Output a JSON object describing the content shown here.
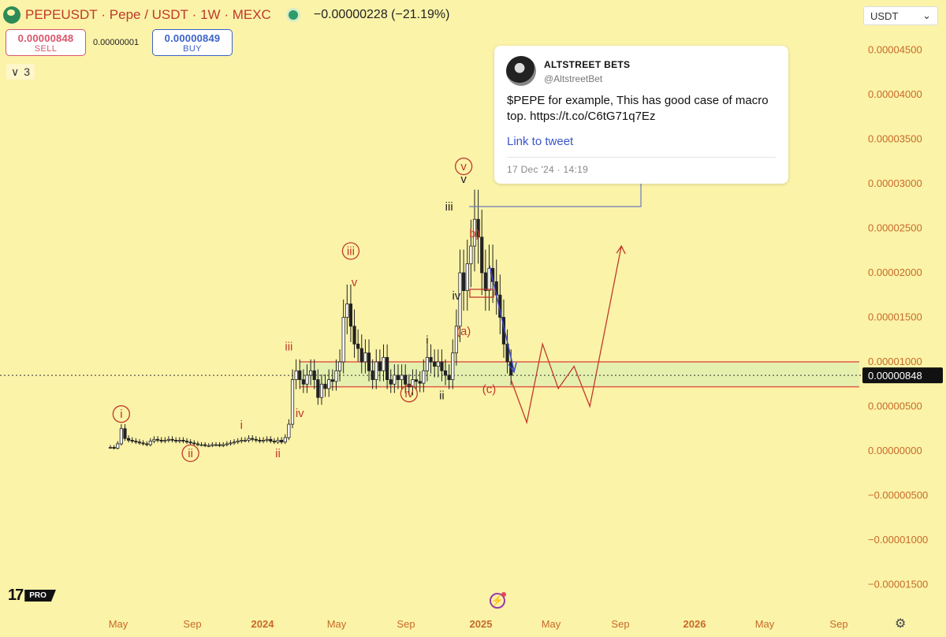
{
  "header": {
    "symbol": "PEPEUSDT",
    "sep": "·",
    "name": "Pepe / USDT",
    "interval": "1W",
    "exchange": "MEXC",
    "change": "−0.00000228 (−21.19%)"
  },
  "trade": {
    "sell_price": "0.00000848",
    "sell_label": "SELL",
    "spread": "0.00000001",
    "buy_price": "0.00000849",
    "buy_label": "BUY"
  },
  "indicators_collapsed": {
    "chevron": "∨",
    "count": "3"
  },
  "currency_select": {
    "value": "USDT",
    "caret": "⌄"
  },
  "tweet": {
    "name": "ALTSTREET BETS",
    "handle": "@AltstreetBet",
    "text": "$PEPE for example, This has good case of macro top. https://t.co/C6tG71q7Ez",
    "link_label": "Link to tweet",
    "date": "17 Dec '24 · 14:19"
  },
  "branding": {
    "tv": "17",
    "pro": "PRO"
  },
  "chart_data": {
    "type": "candlestick",
    "y_ticks": [
      "0.00004500",
      "0.00004000",
      "0.00003500",
      "0.00003000",
      "0.00002500",
      "0.00002000",
      "0.00001500",
      "0.00001000",
      "0.00000500",
      "0.00000000",
      "−0.00000500",
      "−0.00001000",
      "−0.00001500"
    ],
    "y_tick_values": [
      4.5e-05,
      4e-05,
      3.5e-05,
      3e-05,
      2.5e-05,
      2e-05,
      1.5e-05,
      1e-05,
      5e-06,
      0,
      -5e-06,
      -1e-05,
      -1.5e-05
    ],
    "x_ticks": [
      "May",
      "Sep",
      "2024",
      "May",
      "Sep",
      "2025",
      "May",
      "Sep",
      "2026",
      "May",
      "Sep"
    ],
    "x_bold": [
      false,
      false,
      true,
      false,
      false,
      true,
      false,
      false,
      true,
      false,
      false
    ],
    "current_price": {
      "label": "0.00000848",
      "value": 8.48e-06
    },
    "zone": {
      "top": 1e-05,
      "bottom": 7.2e-06
    },
    "closes": [
      4e-07,
      3e-07,
      8e-07,
      2.5e-06,
      1.4e-06,
      1.2e-06,
      1.1e-06,
      1e-06,
      9e-07,
      8e-07,
      7e-07,
      1.1e-06,
      1.3e-06,
      1.2e-06,
      1.1e-06,
      1.2e-06,
      1.3e-06,
      1.2e-06,
      1.1e-06,
      1.2e-06,
      1.1e-06,
      1e-06,
      9e-07,
      8e-07,
      7e-07,
      7e-07,
      6e-07,
      6e-07,
      7e-07,
      7e-07,
      6e-07,
      7e-07,
      8e-07,
      9e-07,
      1e-06,
      1.1e-06,
      1.2e-06,
      1.2e-06,
      1.4e-06,
      1.3e-06,
      1.2e-06,
      1.1e-06,
      1.2e-06,
      1.3e-06,
      1.1e-06,
      1e-06,
      1.2e-06,
      1e-06,
      1.5e-06,
      3e-06,
      8e-06,
      9e-06,
      8e-06,
      7.5e-06,
      8.5e-06,
      9e-06,
      8e-06,
      6e-06,
      7.5e-06,
      7e-06,
      8e-06,
      7.8e-06,
      9e-06,
      1e-05,
      1.5e-05,
      1.65e-05,
      1.4e-05,
      1.2e-05,
      1.15e-05,
      1e-05,
      1.1e-05,
      9e-06,
      8e-06,
      1e-05,
      9e-06,
      1.05e-05,
      8e-06,
      7.5e-06,
      8.5e-06,
      8e-06,
      8.5e-06,
      7.5e-06,
      7.2e-06,
      8e-06,
      7.8e-06,
      7.6e-06,
      9e-06,
      1.05e-05,
      1e-05,
      9.5e-06,
      1e-05,
      9e-06,
      8.5e-06,
      8e-06,
      1.1e-05,
      1.4e-05,
      2e-05,
      1.8e-05,
      2.1e-05,
      2.3e-05,
      2.6e-05,
      2.4e-05,
      2e-05,
      1.8e-05,
      2.05e-05,
      1.9e-05,
      1.75e-05,
      1.5e-05,
      1.2e-05,
      1e-05,
      8.5e-06
    ],
    "wave_labels": [
      {
        "text": "i",
        "v": 3.7e-06,
        "i": 3,
        "circled": true,
        "color": "red"
      },
      {
        "text": "ii",
        "v": -7e-07,
        "i": 22,
        "circled": true,
        "color": "red"
      },
      {
        "text": "i",
        "v": 2.5e-06,
        "i": 36,
        "circled": false,
        "color": "red"
      },
      {
        "text": "ii",
        "v": -7e-07,
        "i": 46,
        "circled": false,
        "color": "red"
      },
      {
        "text": "iii",
        "v": 1.13e-05,
        "i": 49,
        "circled": false,
        "color": "red"
      },
      {
        "text": "iv",
        "v": 3.8e-06,
        "i": 52,
        "circled": false,
        "color": "red"
      },
      {
        "text": "iii",
        "v": 2.2e-05,
        "i": 66,
        "circled": true,
        "color": "red"
      },
      {
        "text": "v",
        "v": 1.85e-05,
        "i": 67,
        "circled": false,
        "color": "red"
      },
      {
        "text": "iv",
        "v": 6e-06,
        "i": 82,
        "circled": true,
        "color": "red"
      },
      {
        "text": "i",
        "v": 1.2e-05,
        "i": 87,
        "circled": false,
        "color": "dark"
      },
      {
        "text": "ii",
        "v": 5.8e-06,
        "i": 91,
        "circled": false,
        "color": "dark"
      },
      {
        "text": "iii",
        "v": 2.7e-05,
        "i": 93,
        "circled": false,
        "color": "dark"
      },
      {
        "text": "iv",
        "v": 1.7e-05,
        "i": 95,
        "circled": false,
        "color": "dark"
      },
      {
        "text": "v",
        "v": 3.15e-05,
        "i": 97,
        "circled": true,
        "color": "red"
      },
      {
        "text": "v",
        "v": 3.01e-05,
        "i": 97,
        "circled": false,
        "color": "dark"
      },
      {
        "text": "b)",
        "v": 2.4e-05,
        "i": 100,
        "circled": false,
        "color": "red"
      },
      {
        "text": "(a)",
        "v": 1.3e-05,
        "i": 97,
        "circled": false,
        "color": "red"
      },
      {
        "text": "(c)",
        "v": 6.5e-06,
        "i": 104,
        "circled": false,
        "color": "red"
      }
    ],
    "projection": [
      [
        8e-06,
        0
      ],
      [
        3.2e-06,
        2
      ],
      [
        1.2e-05,
        4
      ],
      [
        7e-06,
        6
      ],
      [
        9.5e-06,
        8
      ],
      [
        5e-06,
        10
      ],
      [
        2.3e-05,
        14
      ]
    ]
  },
  "colors": {
    "bg": "#fbf3a8",
    "red": "#c0392b",
    "zone": "#e05a4a",
    "arrow": "#3b49c9",
    "axis": "#c76a2a"
  }
}
